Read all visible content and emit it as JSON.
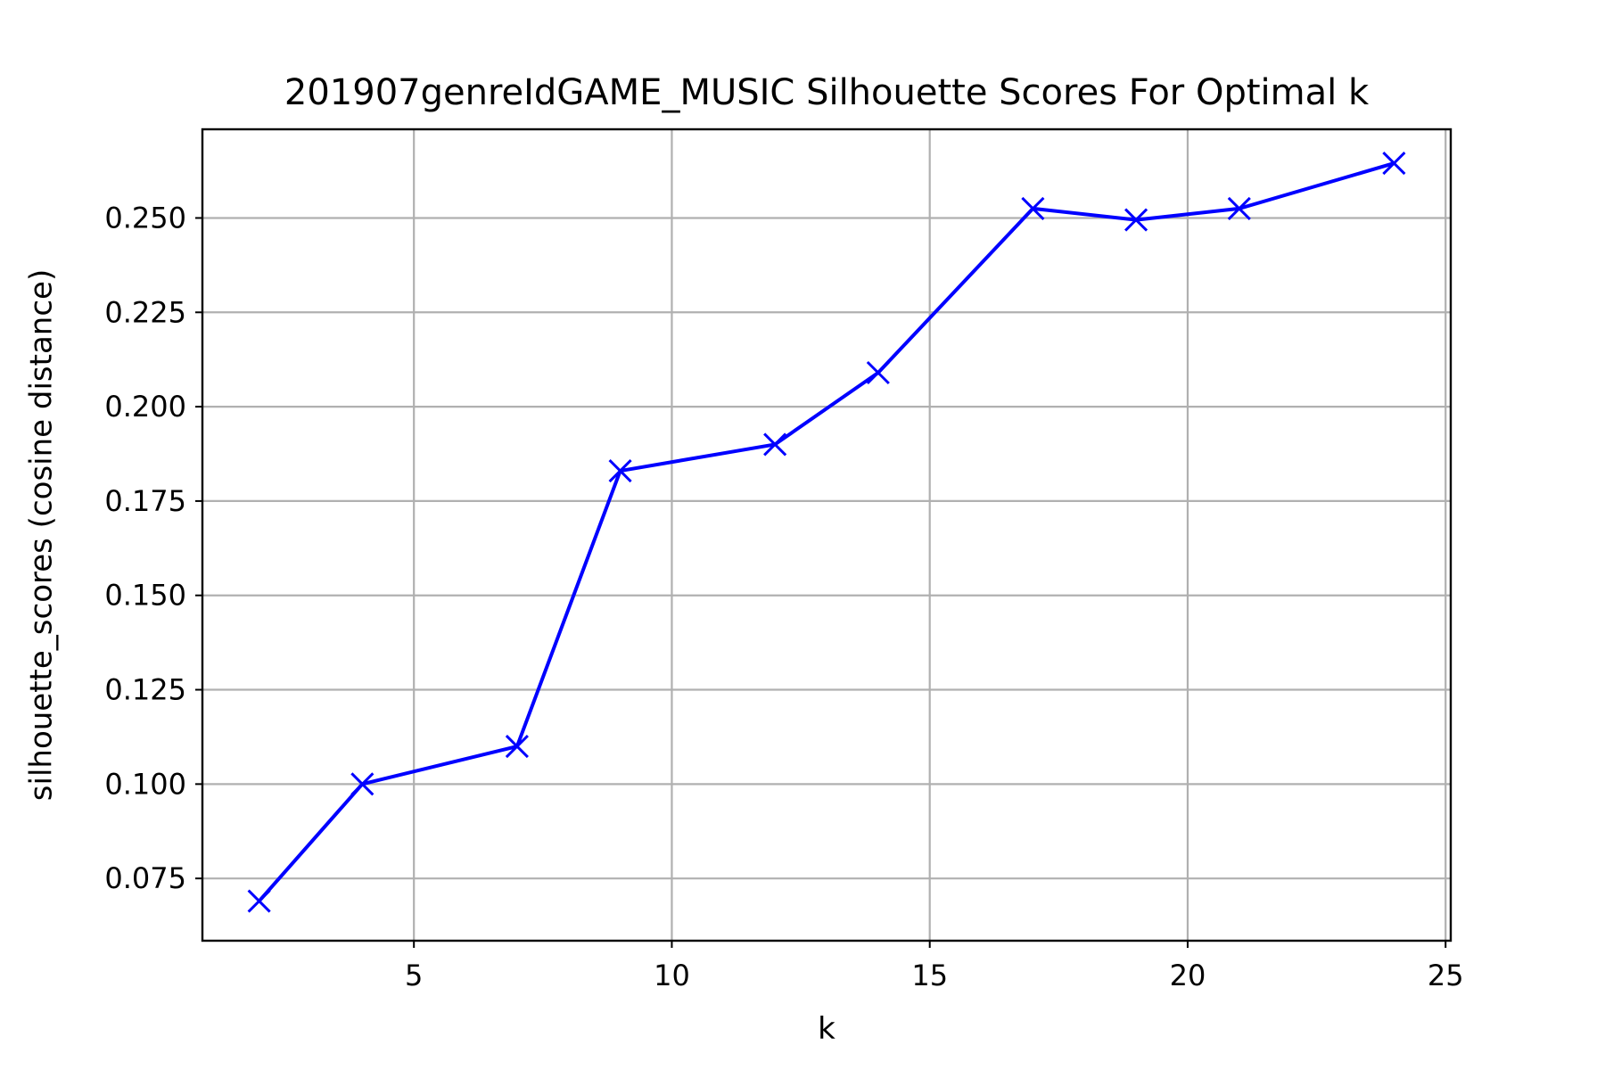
{
  "chart_data": {
    "type": "line",
    "title": "201907genreIdGAME_MUSIC Silhouette Scores For Optimal k",
    "xlabel": "k",
    "ylabel": "silhouette_scores (cosine distance)",
    "xlim": [
      0.9,
      25.1
    ],
    "ylim": [
      0.0585,
      0.2735
    ],
    "xticks": [
      5,
      10,
      15,
      20,
      25
    ],
    "yticks": [
      0.075,
      0.1,
      0.125,
      0.15,
      0.175,
      0.2,
      0.225,
      0.25
    ],
    "ytick_labels": [
      "0.075",
      "0.100",
      "0.125",
      "0.150",
      "0.175",
      "0.200",
      "0.225",
      "0.250"
    ],
    "grid": true,
    "series": [
      {
        "color": "#0000ff",
        "marker": "x",
        "x": [
          2,
          4,
          7,
          9,
          12,
          14,
          17,
          19,
          21,
          24
        ],
        "y": [
          0.069,
          0.1,
          0.11,
          0.183,
          0.19,
          0.209,
          0.2525,
          0.2495,
          0.2525,
          0.2645
        ]
      }
    ]
  }
}
